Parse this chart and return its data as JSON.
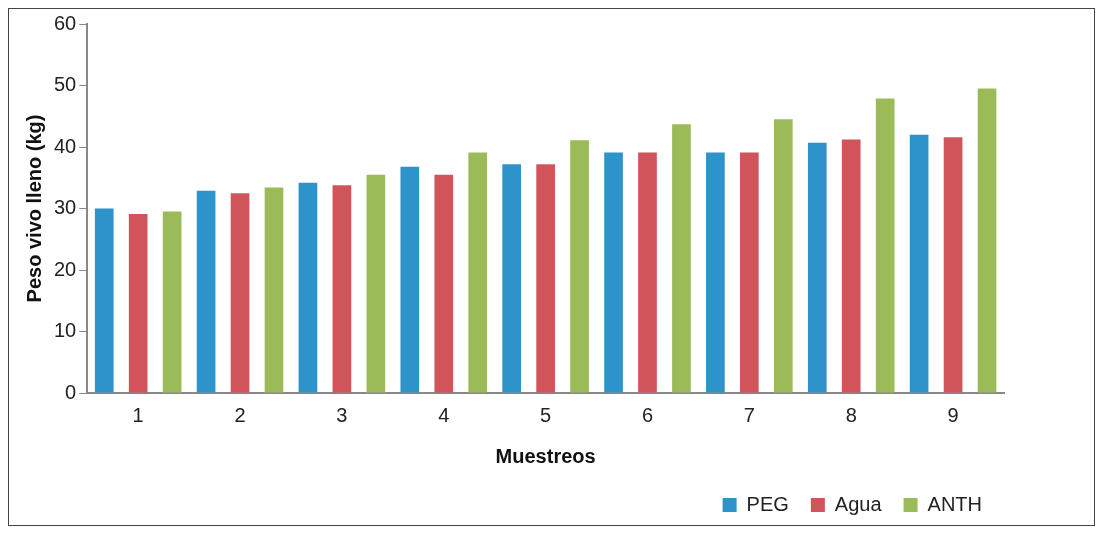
{
  "chart_data": {
    "type": "bar",
    "xlabel": "Muestreos",
    "ylabel": "Peso vivo lleno (kg)",
    "categories": [
      "1",
      "2",
      "3",
      "4",
      "5",
      "6",
      "7",
      "8",
      "9"
    ],
    "series": [
      {
        "name": "PEG",
        "color": "#2e93cb",
        "values": [
          30.0,
          32.9,
          34.2,
          36.8,
          37.2,
          39.1,
          39.1,
          40.7,
          42.0
        ]
      },
      {
        "name": "Agua",
        "color": "#d0545a",
        "values": [
          29.1,
          32.5,
          33.8,
          35.5,
          37.2,
          39.1,
          39.1,
          41.2,
          41.6
        ]
      },
      {
        "name": "ANTH",
        "color": "#9bbb59",
        "values": [
          29.5,
          33.4,
          35.5,
          39.1,
          41.1,
          43.7,
          44.5,
          47.9,
          49.5
        ]
      }
    ],
    "ylim": [
      0,
      60
    ],
    "yticks": [
      0,
      10,
      20,
      30,
      40,
      50,
      60
    ],
    "grid": false,
    "legend": "bottom right"
  }
}
